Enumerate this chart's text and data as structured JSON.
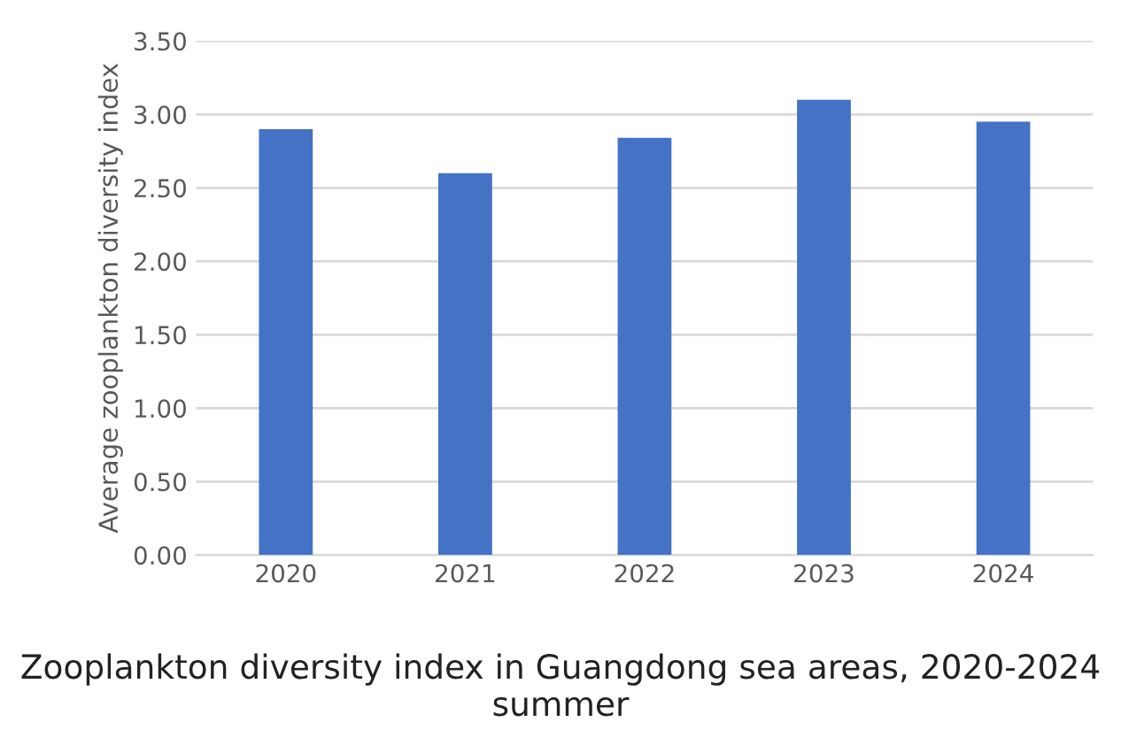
{
  "chart_data": {
    "type": "bar",
    "title": "Zooplankton diversity index in Guangdong sea areas, 2020-2024 summer",
    "ylabel": "Average zooplankton diversity index",
    "categories": [
      "2020",
      "2021",
      "2022",
      "2023",
      "2024"
    ],
    "values": [
      2.9,
      2.6,
      2.84,
      3.1,
      2.95
    ],
    "color": "#4472c4",
    "ylim": [
      0,
      3.5
    ],
    "yticks": [
      {
        "value": 0,
        "label": "0.00"
      },
      {
        "value": 0.5,
        "label": "0.50"
      },
      {
        "value": 1,
        "label": "1.00"
      },
      {
        "value": 1.5,
        "label": "1.50"
      },
      {
        "value": 2,
        "label": "2.00"
      },
      {
        "value": 2.5,
        "label": "2.50"
      },
      {
        "value": 3,
        "label": "3.00"
      },
      {
        "value": 3.5,
        "label": "3.50"
      }
    ],
    "grid": "y"
  }
}
